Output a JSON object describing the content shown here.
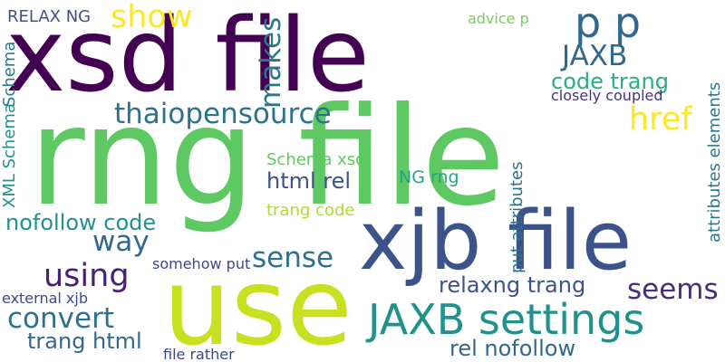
{
  "words": [
    {
      "text": "xsd file",
      "color": "#440154"
    },
    {
      "text": "rng file",
      "color": "#5ec962"
    },
    {
      "text": "use",
      "color": "#c8e020"
    },
    {
      "text": "xjb file",
      "color": "#3b528b"
    },
    {
      "text": "JAXB settings",
      "color": "#21918c"
    },
    {
      "text": "p p",
      "color": "#31688e"
    },
    {
      "text": "thaiopensource",
      "color": "#2c728e"
    },
    {
      "text": "JAXB",
      "color": "#31688e"
    },
    {
      "text": "code trang",
      "color": "#28ae80"
    },
    {
      "text": "href",
      "color": "#fde725"
    },
    {
      "text": "show",
      "color": "#fde725"
    },
    {
      "text": "RELAX NG",
      "color": "#3b528b"
    },
    {
      "text": "advice p",
      "color": "#75d054"
    },
    {
      "text": "makes",
      "color": "#2a788e"
    },
    {
      "text": "closely coupled",
      "color": "#46327e"
    },
    {
      "text": "Schema",
      "color": "#2a788e"
    },
    {
      "text": "XML Schema",
      "color": "#21918c"
    },
    {
      "text": "Schema xsd",
      "color": "#5ec962"
    },
    {
      "text": "NG rng",
      "color": "#20a486"
    },
    {
      "text": "html rel",
      "color": "#3b528b"
    },
    {
      "text": "trang code",
      "color": "#addc30"
    },
    {
      "text": "nofollow code",
      "color": "#21918c"
    },
    {
      "text": "way",
      "color": "#31688e"
    },
    {
      "text": "sense",
      "color": "#2c728e"
    },
    {
      "text": "using",
      "color": "#482173"
    },
    {
      "text": "put attributes",
      "color": "#2c728e"
    },
    {
      "text": "attributes elements",
      "color": "#2a788e"
    },
    {
      "text": "somehow put",
      "color": "#3e4989"
    },
    {
      "text": "relaxng trang",
      "color": "#3b528b"
    },
    {
      "text": "seems",
      "color": "#472d7b"
    },
    {
      "text": "external xjb",
      "color": "#3e4989"
    },
    {
      "text": "convert",
      "color": "#2c728e"
    },
    {
      "text": "trang html",
      "color": "#31688e"
    },
    {
      "text": "file rather",
      "color": "#3e4989"
    },
    {
      "text": "rel nofollow",
      "color": "#31688e"
    }
  ]
}
